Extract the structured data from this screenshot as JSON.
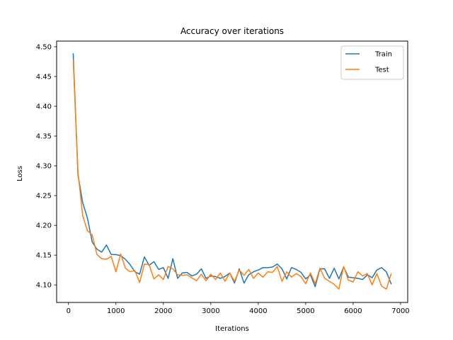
{
  "chart_data": {
    "type": "line",
    "title": "Accuracy over iterations",
    "xlabel": "Iterations",
    "ylabel": "Loss",
    "xlim": [
      -250,
      7150
    ],
    "ylim": [
      4.0705,
      4.5095
    ],
    "xticks": [
      0,
      1000,
      2000,
      3000,
      4000,
      5000,
      6000,
      7000
    ],
    "yticks": [
      4.1,
      4.15,
      4.2,
      4.25,
      4.3,
      4.35,
      4.4,
      4.45,
      4.5
    ],
    "ytick_labels": [
      "4.10",
      "4.15",
      "4.20",
      "4.25",
      "4.30",
      "4.35",
      "4.40",
      "4.45",
      "4.50"
    ],
    "grid": false,
    "legend_position": "upper right",
    "x": [
      100,
      200,
      300,
      400,
      500,
      600,
      700,
      800,
      900,
      1000,
      1100,
      1200,
      1300,
      1400,
      1500,
      1600,
      1700,
      1800,
      1900,
      2000,
      2100,
      2200,
      2300,
      2400,
      2500,
      2600,
      2700,
      2800,
      2900,
      3000,
      3100,
      3200,
      3300,
      3400,
      3500,
      3600,
      3700,
      3800,
      3900,
      4000,
      4100,
      4200,
      4300,
      4400,
      4500,
      4600,
      4700,
      4800,
      4900,
      5000,
      5100,
      5200,
      5300,
      5400,
      5500,
      5600,
      5700,
      5800,
      5900,
      6000,
      6100,
      6200,
      6300,
      6400,
      6500,
      6600,
      6700,
      6800
    ],
    "series": [
      {
        "name": "Train",
        "color": "#1f77b4",
        "values": [
          4.488,
          4.285,
          4.238,
          4.212,
          4.172,
          4.16,
          4.155,
          4.167,
          4.151,
          4.151,
          4.149,
          4.143,
          4.134,
          4.122,
          4.118,
          4.147,
          4.133,
          4.139,
          4.126,
          4.129,
          4.111,
          4.144,
          4.111,
          4.12,
          4.121,
          4.115,
          4.118,
          4.127,
          4.111,
          4.115,
          4.114,
          4.111,
          4.114,
          4.12,
          4.103,
          4.127,
          4.103,
          4.117,
          4.122,
          4.125,
          4.129,
          4.129,
          4.13,
          4.135,
          4.127,
          4.11,
          4.129,
          4.126,
          4.121,
          4.11,
          4.117,
          4.097,
          4.127,
          4.127,
          4.111,
          4.128,
          4.11,
          4.13,
          4.113,
          4.112,
          4.111,
          4.109,
          4.117,
          4.112,
          4.125,
          4.129,
          4.122,
          4.102
        ]
      },
      {
        "name": "Test",
        "color": "#ff7f0e",
        "values": [
          4.477,
          4.29,
          4.216,
          4.191,
          4.184,
          4.151,
          4.144,
          4.143,
          4.148,
          4.122,
          4.152,
          4.128,
          4.122,
          4.124,
          4.104,
          4.135,
          4.134,
          4.11,
          4.117,
          4.109,
          4.131,
          4.127,
          4.117,
          4.116,
          4.117,
          4.112,
          4.107,
          4.118,
          4.107,
          4.118,
          4.109,
          4.12,
          4.106,
          4.12,
          4.106,
          4.125,
          4.116,
          4.126,
          4.111,
          4.12,
          4.113,
          4.122,
          4.121,
          4.131,
          4.106,
          4.122,
          4.113,
          4.119,
          4.114,
          4.102,
          4.12,
          4.102,
          4.128,
          4.111,
          4.106,
          4.101,
          4.093,
          4.131,
          4.108,
          4.105,
          4.122,
          4.115,
          4.119,
          4.1,
          4.119,
          4.098,
          4.093,
          4.118
        ]
      }
    ]
  }
}
